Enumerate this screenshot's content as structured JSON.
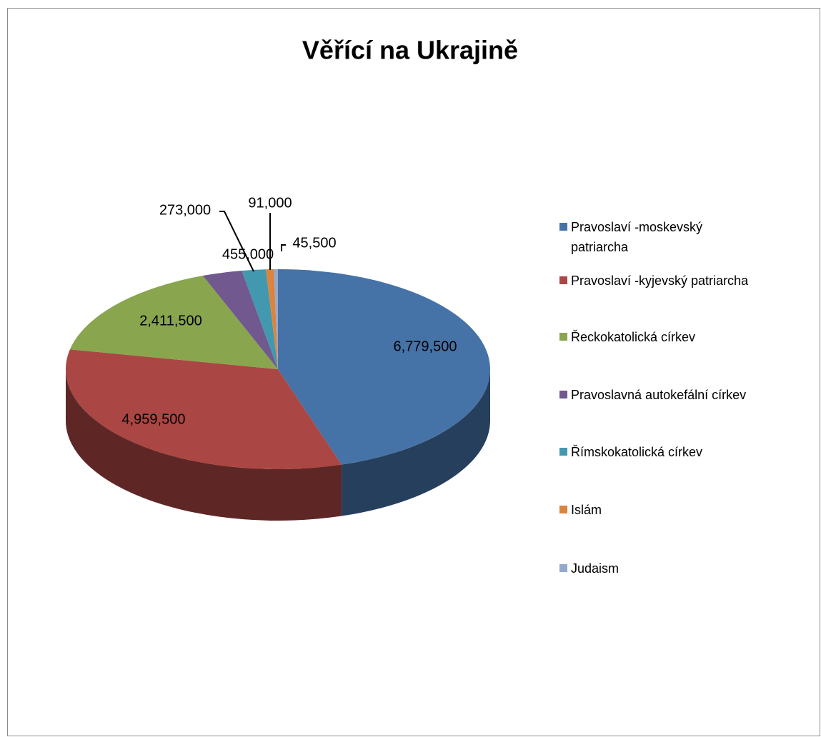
{
  "chart_data": {
    "type": "pie",
    "title": "Věřící na Ukrajině",
    "categories": [
      "Pravoslaví -moskevský patriarcha",
      "Pravoslaví -kyjevský patriarcha",
      "Řeckokatolická církev",
      "Pravoslavná autokefální církev",
      "Římskokatolická církev",
      "Islám",
      "Judaism"
    ],
    "values": [
      6779500,
      4959500,
      2411500,
      455000,
      273000,
      91000,
      45500
    ],
    "value_labels": [
      "6,779,500",
      "4,959,500",
      "2,411,500",
      "455,000",
      "273,000",
      "91,000",
      "45,500"
    ],
    "colors": [
      "#4572a7",
      "#aa4643",
      "#89a54e",
      "#71588f",
      "#4198af",
      "#db843d",
      "#93a9cf"
    ],
    "legend": "right"
  }
}
